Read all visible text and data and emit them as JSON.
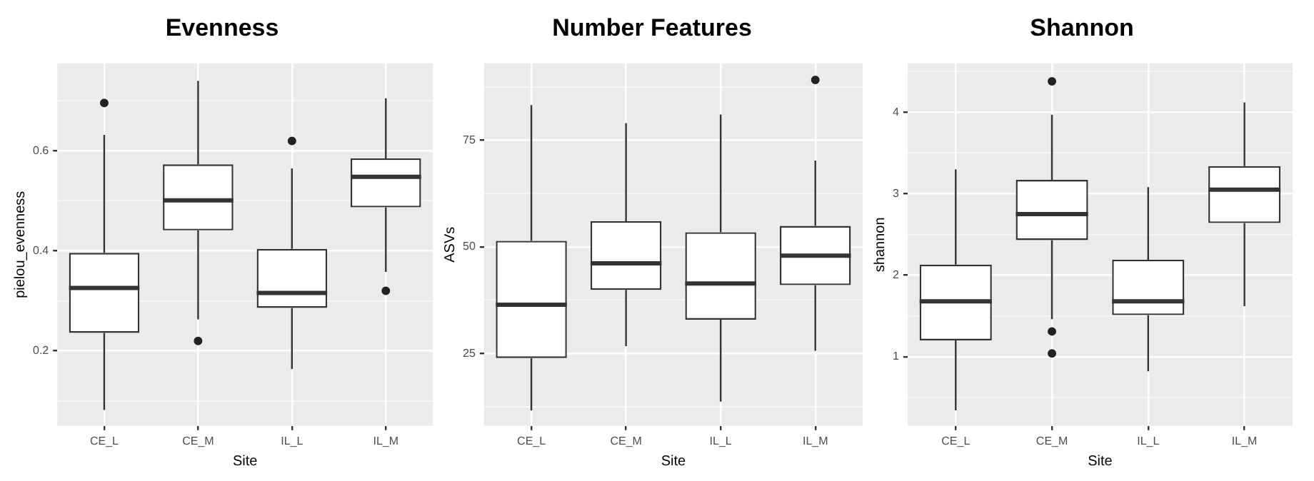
{
  "chart_data": [
    {
      "type": "box",
      "title": "Evenness",
      "xlabel": "Site",
      "ylabel": "pielou_evenness",
      "categories": [
        "CE_L",
        "CE_M",
        "IL_L",
        "IL_M"
      ],
      "boxes": [
        {
          "low": 0.082,
          "q1": 0.236,
          "median": 0.326,
          "q3": 0.396,
          "high": 0.632,
          "outliers": [
            0.696
          ]
        },
        {
          "low": 0.263,
          "q1": 0.441,
          "median": 0.501,
          "q3": 0.573,
          "high": 0.74,
          "outliers": [
            0.22
          ]
        },
        {
          "low": 0.164,
          "q1": 0.286,
          "median": 0.316,
          "q3": 0.404,
          "high": 0.565,
          "outliers": [
            0.62
          ]
        },
        {
          "low": 0.358,
          "q1": 0.487,
          "median": 0.548,
          "q3": 0.585,
          "high": 0.705,
          "outliers": [
            0.32
          ]
        }
      ],
      "ylim": [
        0.05,
        0.775
      ],
      "yticks": [
        {
          "value": 0.1,
          "label": null
        },
        0.2,
        {
          "value": 0.3,
          "label": null
        },
        0.4,
        {
          "value": 0.5,
          "label": null
        },
        0.6,
        {
          "value": 0.7,
          "label": null
        }
      ],
      "grid": true
    },
    {
      "type": "box",
      "title": "Number Features",
      "xlabel": "Site",
      "ylabel": "ASVs",
      "categories": [
        "CE_L",
        "CE_M",
        "IL_L",
        "IL_M"
      ],
      "boxes": [
        {
          "low": 11.6,
          "q1": 23.9,
          "median": 36.4,
          "q3": 51.4,
          "high": 83.2
        },
        {
          "low": 26.7,
          "q1": 39.9,
          "median": 46.1,
          "q3": 56.0,
          "high": 79.0
        },
        {
          "low": 13.7,
          "q1": 32.9,
          "median": 41.4,
          "q3": 53.4,
          "high": 81.0
        },
        {
          "low": 25.6,
          "q1": 41.0,
          "median": 47.9,
          "q3": 54.9,
          "high": 70.2,
          "outliers": [
            89.1
          ]
        }
      ],
      "ylim": [
        8,
        93
      ],
      "yticks": [
        {
          "value": 12.5,
          "label": null
        },
        25,
        {
          "value": 37.5,
          "label": null
        },
        50,
        {
          "value": 62.5,
          "label": null
        },
        75,
        {
          "value": 87.5,
          "label": null
        }
      ],
      "grid": true
    },
    {
      "type": "box",
      "title": "Shannon",
      "xlabel": "Site",
      "ylabel": "shannon",
      "categories": [
        "CE_L",
        "CE_M",
        "IL_L",
        "IL_M"
      ],
      "boxes": [
        {
          "low": 0.34,
          "q1": 1.2,
          "median": 1.68,
          "q3": 2.13,
          "high": 3.3
        },
        {
          "low": 1.46,
          "q1": 2.43,
          "median": 2.75,
          "q3": 3.17,
          "high": 3.97,
          "outliers": [
            4.38,
            1.31,
            1.04
          ]
        },
        {
          "low": 0.82,
          "q1": 1.51,
          "median": 1.68,
          "q3": 2.19,
          "high": 3.08
        },
        {
          "low": 1.62,
          "q1": 2.64,
          "median": 3.05,
          "q3": 3.34,
          "high": 4.12
        }
      ],
      "ylim": [
        0.15,
        4.6
      ],
      "yticks": [
        {
          "value": 0.5,
          "label": null
        },
        1,
        {
          "value": 1.5,
          "label": null
        },
        2,
        {
          "value": 2.5,
          "label": null
        },
        3,
        {
          "value": 3.5,
          "label": null
        },
        4,
        {
          "value": 4.5,
          "label": null
        }
      ],
      "grid": true
    }
  ]
}
